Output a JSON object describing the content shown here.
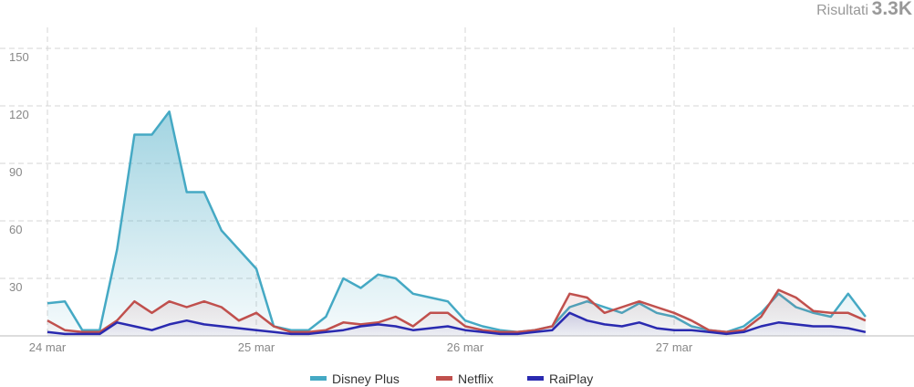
{
  "chart_data": {
    "type": "area",
    "header_label": "Risultati",
    "header_value": "3.3K",
    "x": [
      0,
      2,
      4,
      6,
      8,
      10,
      12,
      14,
      16,
      18,
      20,
      22,
      24,
      26,
      28,
      30,
      32,
      34,
      36,
      38,
      40,
      42,
      44,
      46,
      48,
      50,
      52,
      54,
      56,
      58,
      60,
      62,
      64,
      66,
      68,
      70,
      72,
      74,
      76,
      78,
      80,
      82,
      84,
      86,
      88,
      90,
      92,
      94
    ],
    "xlim": [
      0,
      96
    ],
    "xticks": [
      {
        "value": 0,
        "label": "24 mar"
      },
      {
        "value": 24,
        "label": "25 mar"
      },
      {
        "value": 48,
        "label": "26 mar"
      },
      {
        "value": 72,
        "label": "27 mar"
      }
    ],
    "ylim": [
      0,
      160
    ],
    "yticks": [
      30,
      60,
      90,
      120,
      150
    ],
    "grid": true,
    "series": [
      {
        "name": "Disney Plus",
        "color": "#45a9c4",
        "values": [
          17,
          18,
          3,
          3,
          45,
          105,
          105,
          117,
          75,
          75,
          55,
          45,
          35,
          5,
          3,
          3,
          10,
          30,
          25,
          32,
          30,
          22,
          20,
          18,
          8,
          5,
          3,
          2,
          3,
          5,
          15,
          18,
          15,
          12,
          17,
          12,
          10,
          5,
          3,
          2,
          5,
          12,
          22,
          15,
          12,
          10,
          22,
          10
        ]
      },
      {
        "name": "Netflix",
        "color": "#c0504d",
        "values": [
          8,
          3,
          2,
          2,
          8,
          18,
          12,
          18,
          15,
          18,
          15,
          8,
          12,
          5,
          2,
          2,
          3,
          7,
          6,
          7,
          10,
          5,
          12,
          12,
          5,
          3,
          2,
          2,
          3,
          5,
          22,
          20,
          12,
          15,
          18,
          15,
          12,
          8,
          3,
          2,
          3,
          10,
          24,
          20,
          13,
          12,
          12,
          8
        ]
      },
      {
        "name": "RaiPlay",
        "color": "#2a2ab0",
        "values": [
          2,
          1,
          1,
          1,
          7,
          5,
          3,
          6,
          8,
          6,
          5,
          4,
          3,
          2,
          1,
          1,
          2,
          3,
          5,
          6,
          5,
          3,
          4,
          5,
          3,
          2,
          1,
          1,
          2,
          3,
          12,
          8,
          6,
          5,
          7,
          4,
          3,
          3,
          2,
          1,
          2,
          5,
          7,
          6,
          5,
          5,
          4,
          2
        ]
      }
    ]
  }
}
